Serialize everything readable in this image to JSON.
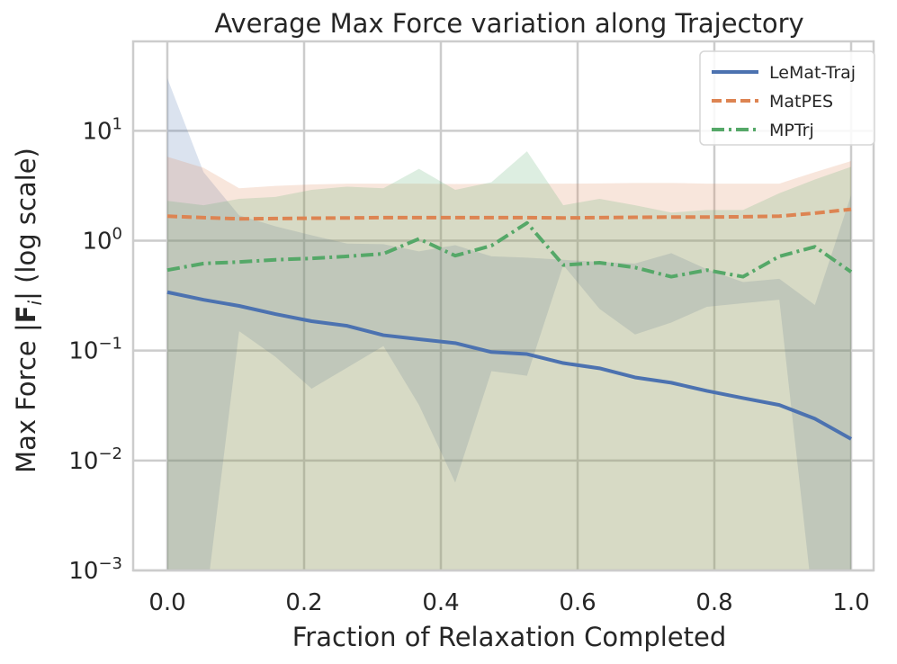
{
  "chart_data": {
    "type": "line",
    "title": "Average Max Force variation along Trajectory",
    "xlabel": "Fraction of Relaxation Completed",
    "ylabel_prefix": "Max Force |",
    "ylabel_bold": "F",
    "ylabel_sub": "i",
    "ylabel_suffix": "| (log scale)",
    "yscale": "log",
    "xlim": [
      -0.05,
      1.035
    ],
    "ylim": [
      0.001,
      65
    ],
    "grid": true,
    "legend_position": "top-right",
    "xticks": [
      0.0,
      0.2,
      0.4,
      0.6,
      0.8,
      1.0
    ],
    "xtick_labels": [
      "0.0",
      "0.2",
      "0.4",
      "0.6",
      "0.8",
      "1.0"
    ],
    "yticks": [
      {
        "value": 0.001,
        "base": "10",
        "exp": "−3"
      },
      {
        "value": 0.01,
        "base": "10",
        "exp": "−2"
      },
      {
        "value": 0.1,
        "base": "10",
        "exp": "−1"
      },
      {
        "value": 1,
        "base": "10",
        "exp": "0"
      },
      {
        "value": 10,
        "base": "10",
        "exp": "1"
      }
    ],
    "series": [
      {
        "name": "LeMat-Traj",
        "color": "#4c72b0",
        "dash": "solid",
        "x": [
          0.0,
          0.053,
          0.105,
          0.158,
          0.211,
          0.263,
          0.316,
          0.368,
          0.421,
          0.474,
          0.526,
          0.579,
          0.632,
          0.684,
          0.737,
          0.789,
          0.842,
          0.895,
          0.947,
          1.0
        ],
        "values": [
          0.34,
          0.29,
          0.255,
          0.215,
          0.185,
          0.168,
          0.138,
          0.127,
          0.117,
          0.097,
          0.093,
          0.077,
          0.069,
          0.057,
          0.051,
          0.043,
          0.037,
          0.032,
          0.024,
          0.0157
        ],
        "band_upper": [
          30,
          4.2,
          1.7,
          1.35,
          1.12,
          0.94,
          0.93,
          0.8,
          0.91,
          0.72,
          0.7,
          0.67,
          0.64,
          0.62,
          0.77,
          0.55,
          0.42,
          0.45,
          0.26,
          2.6
        ],
        "band_lower": [
          0.00035,
          0.00035,
          0.15,
          0.088,
          0.045,
          0.07,
          0.11,
          0.032,
          0.0063,
          0.065,
          0.059,
          0.6,
          0.24,
          0.14,
          0.18,
          0.25,
          0.27,
          0.29,
          0.00035,
          0.00035
        ]
      },
      {
        "name": "MatPES",
        "color": "#dd8452",
        "dash": "dashed",
        "x": [
          0.0,
          0.053,
          0.105,
          0.158,
          0.211,
          0.263,
          0.316,
          0.368,
          0.421,
          0.474,
          0.526,
          0.579,
          0.632,
          0.684,
          0.737,
          0.789,
          0.842,
          0.895,
          0.947,
          1.0
        ],
        "values": [
          1.67,
          1.62,
          1.58,
          1.59,
          1.6,
          1.61,
          1.62,
          1.62,
          1.62,
          1.62,
          1.62,
          1.61,
          1.62,
          1.63,
          1.64,
          1.64,
          1.65,
          1.67,
          1.78,
          1.93
        ],
        "band_upper": [
          5.8,
          4.6,
          3.0,
          3.15,
          3.25,
          3.3,
          3.3,
          3.3,
          3.28,
          3.3,
          3.3,
          3.3,
          3.32,
          3.35,
          3.35,
          3.3,
          3.3,
          3.3,
          4.2,
          5.3
        ],
        "band_lower": [
          0.00035,
          0.00035,
          0.00035,
          0.00035,
          0.00035,
          0.00035,
          0.00035,
          0.00035,
          0.00035,
          0.00035,
          0.00035,
          0.00035,
          0.00035,
          0.00035,
          0.00035,
          0.00035,
          0.00035,
          0.00035,
          0.00035,
          0.00035
        ]
      },
      {
        "name": "MPTrj",
        "color": "#55a868",
        "dash": "dashdot",
        "x": [
          0.0,
          0.053,
          0.105,
          0.158,
          0.211,
          0.263,
          0.316,
          0.368,
          0.421,
          0.474,
          0.526,
          0.579,
          0.632,
          0.684,
          0.737,
          0.789,
          0.842,
          0.895,
          0.947,
          1.0
        ],
        "values": [
          0.54,
          0.62,
          0.64,
          0.67,
          0.69,
          0.72,
          0.76,
          1.04,
          0.73,
          0.9,
          1.45,
          0.6,
          0.63,
          0.57,
          0.47,
          0.54,
          0.47,
          0.72,
          0.88,
          0.52
        ],
        "band_upper": [
          2.3,
          2.1,
          2.4,
          2.5,
          2.9,
          3.1,
          3.0,
          4.5,
          2.9,
          3.4,
          6.5,
          2.1,
          2.4,
          2.1,
          1.8,
          1.9,
          1.9,
          2.7,
          3.6,
          4.7
        ],
        "band_lower": [
          0.00035,
          0.00035,
          0.00035,
          0.00035,
          0.00035,
          0.00035,
          0.00035,
          0.00035,
          0.00035,
          0.00035,
          0.00035,
          0.00035,
          0.00035,
          0.00035,
          0.00035,
          0.00035,
          0.00035,
          0.00035,
          0.00035,
          0.00035
        ]
      }
    ]
  }
}
